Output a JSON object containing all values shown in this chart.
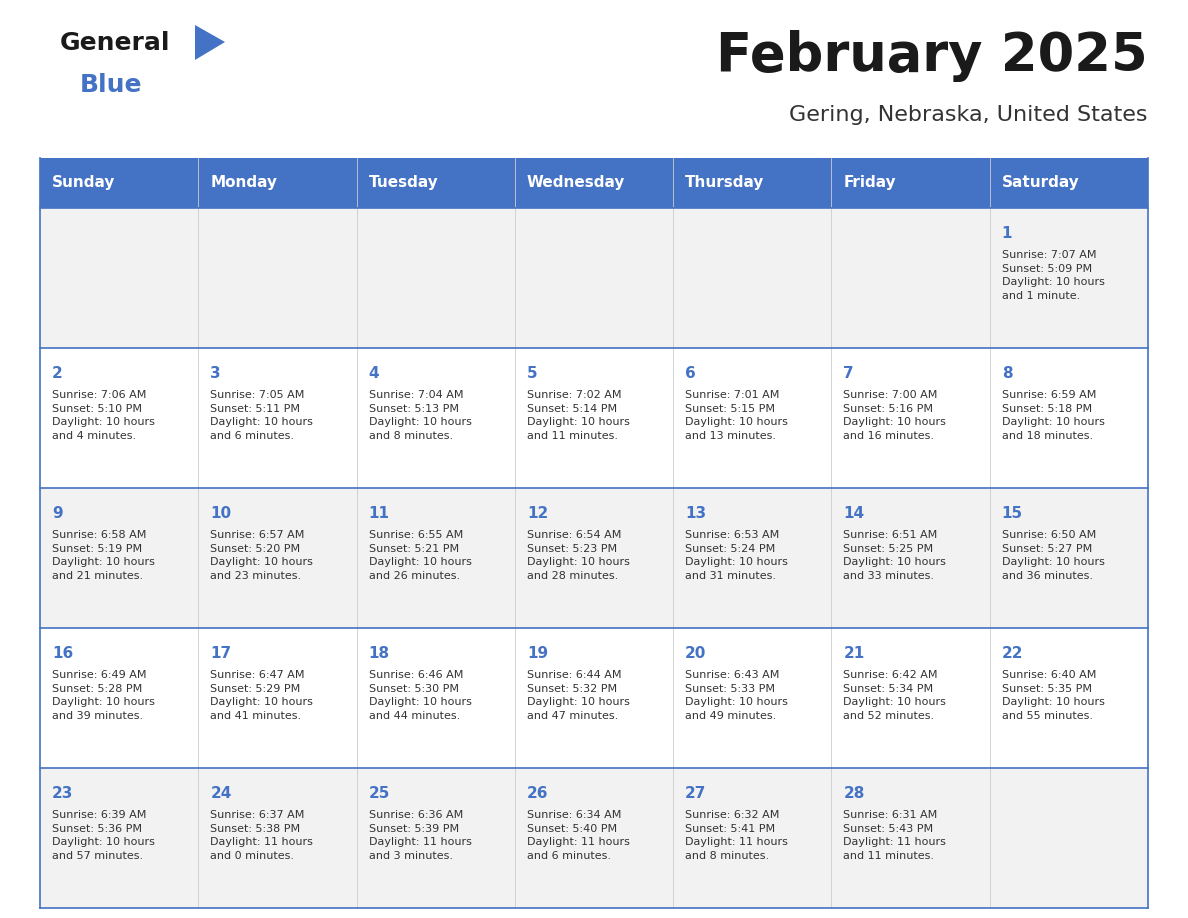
{
  "title": "February 2025",
  "subtitle": "Gering, Nebraska, United States",
  "days_of_week": [
    "Sunday",
    "Monday",
    "Tuesday",
    "Wednesday",
    "Thursday",
    "Friday",
    "Saturday"
  ],
  "header_bg": "#4472C4",
  "header_text": "#FFFFFF",
  "cell_bg_odd": "#F2F2F2",
  "cell_bg_even": "#FFFFFF",
  "border_color": "#4472C4",
  "title_color": "#1a1a1a",
  "subtitle_color": "#333333",
  "day_number_color": "#4472C4",
  "cell_text_color": "#333333",
  "logo_general_color": "#1a1a1a",
  "logo_blue_color": "#4472C4",
  "weeks": [
    [
      {
        "day": null,
        "info": null
      },
      {
        "day": null,
        "info": null
      },
      {
        "day": null,
        "info": null
      },
      {
        "day": null,
        "info": null
      },
      {
        "day": null,
        "info": null
      },
      {
        "day": null,
        "info": null
      },
      {
        "day": 1,
        "info": "Sunrise: 7:07 AM\nSunset: 5:09 PM\nDaylight: 10 hours\nand 1 minute."
      }
    ],
    [
      {
        "day": 2,
        "info": "Sunrise: 7:06 AM\nSunset: 5:10 PM\nDaylight: 10 hours\nand 4 minutes."
      },
      {
        "day": 3,
        "info": "Sunrise: 7:05 AM\nSunset: 5:11 PM\nDaylight: 10 hours\nand 6 minutes."
      },
      {
        "day": 4,
        "info": "Sunrise: 7:04 AM\nSunset: 5:13 PM\nDaylight: 10 hours\nand 8 minutes."
      },
      {
        "day": 5,
        "info": "Sunrise: 7:02 AM\nSunset: 5:14 PM\nDaylight: 10 hours\nand 11 minutes."
      },
      {
        "day": 6,
        "info": "Sunrise: 7:01 AM\nSunset: 5:15 PM\nDaylight: 10 hours\nand 13 minutes."
      },
      {
        "day": 7,
        "info": "Sunrise: 7:00 AM\nSunset: 5:16 PM\nDaylight: 10 hours\nand 16 minutes."
      },
      {
        "day": 8,
        "info": "Sunrise: 6:59 AM\nSunset: 5:18 PM\nDaylight: 10 hours\nand 18 minutes."
      }
    ],
    [
      {
        "day": 9,
        "info": "Sunrise: 6:58 AM\nSunset: 5:19 PM\nDaylight: 10 hours\nand 21 minutes."
      },
      {
        "day": 10,
        "info": "Sunrise: 6:57 AM\nSunset: 5:20 PM\nDaylight: 10 hours\nand 23 minutes."
      },
      {
        "day": 11,
        "info": "Sunrise: 6:55 AM\nSunset: 5:21 PM\nDaylight: 10 hours\nand 26 minutes."
      },
      {
        "day": 12,
        "info": "Sunrise: 6:54 AM\nSunset: 5:23 PM\nDaylight: 10 hours\nand 28 minutes."
      },
      {
        "day": 13,
        "info": "Sunrise: 6:53 AM\nSunset: 5:24 PM\nDaylight: 10 hours\nand 31 minutes."
      },
      {
        "day": 14,
        "info": "Sunrise: 6:51 AM\nSunset: 5:25 PM\nDaylight: 10 hours\nand 33 minutes."
      },
      {
        "day": 15,
        "info": "Sunrise: 6:50 AM\nSunset: 5:27 PM\nDaylight: 10 hours\nand 36 minutes."
      }
    ],
    [
      {
        "day": 16,
        "info": "Sunrise: 6:49 AM\nSunset: 5:28 PM\nDaylight: 10 hours\nand 39 minutes."
      },
      {
        "day": 17,
        "info": "Sunrise: 6:47 AM\nSunset: 5:29 PM\nDaylight: 10 hours\nand 41 minutes."
      },
      {
        "day": 18,
        "info": "Sunrise: 6:46 AM\nSunset: 5:30 PM\nDaylight: 10 hours\nand 44 minutes."
      },
      {
        "day": 19,
        "info": "Sunrise: 6:44 AM\nSunset: 5:32 PM\nDaylight: 10 hours\nand 47 minutes."
      },
      {
        "day": 20,
        "info": "Sunrise: 6:43 AM\nSunset: 5:33 PM\nDaylight: 10 hours\nand 49 minutes."
      },
      {
        "day": 21,
        "info": "Sunrise: 6:42 AM\nSunset: 5:34 PM\nDaylight: 10 hours\nand 52 minutes."
      },
      {
        "day": 22,
        "info": "Sunrise: 6:40 AM\nSunset: 5:35 PM\nDaylight: 10 hours\nand 55 minutes."
      }
    ],
    [
      {
        "day": 23,
        "info": "Sunrise: 6:39 AM\nSunset: 5:36 PM\nDaylight: 10 hours\nand 57 minutes."
      },
      {
        "day": 24,
        "info": "Sunrise: 6:37 AM\nSunset: 5:38 PM\nDaylight: 11 hours\nand 0 minutes."
      },
      {
        "day": 25,
        "info": "Sunrise: 6:36 AM\nSunset: 5:39 PM\nDaylight: 11 hours\nand 3 minutes."
      },
      {
        "day": 26,
        "info": "Sunrise: 6:34 AM\nSunset: 5:40 PM\nDaylight: 11 hours\nand 6 minutes."
      },
      {
        "day": 27,
        "info": "Sunrise: 6:32 AM\nSunset: 5:41 PM\nDaylight: 11 hours\nand 8 minutes."
      },
      {
        "day": 28,
        "info": "Sunrise: 6:31 AM\nSunset: 5:43 PM\nDaylight: 11 hours\nand 11 minutes."
      },
      {
        "day": null,
        "info": null
      }
    ]
  ]
}
